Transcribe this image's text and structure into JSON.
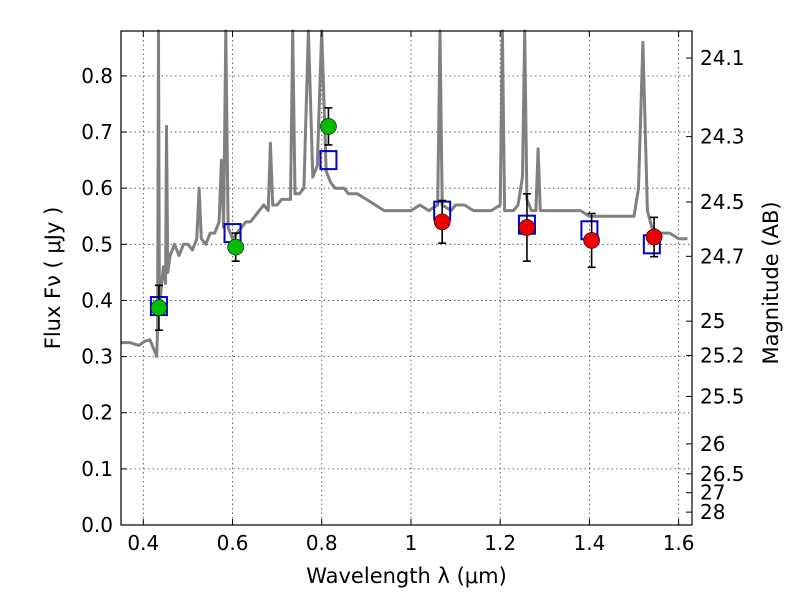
{
  "chart_data": {
    "type": "scatter",
    "xlabel": "Wavelength  λ (μm)",
    "ylabel": "Flux  Fν  ( μJy )",
    "y2label": "Magnitude (AB)",
    "xlim": [
      0.35,
      1.63
    ],
    "ylim": [
      0.0,
      0.88
    ],
    "grid": true,
    "x_ticks": [
      0.4,
      0.6,
      0.8,
      1.0,
      1.2,
      1.4,
      1.6
    ],
    "x_tick_labels": [
      "0.4",
      "0.6",
      "0.8",
      "1",
      "1.2",
      "1.4",
      "1.6"
    ],
    "y_ticks": [
      0.0,
      0.1,
      0.2,
      0.3,
      0.4,
      0.5,
      0.6,
      0.7,
      0.8
    ],
    "y_tick_labels": [
      "0.0",
      "0.1",
      "0.2",
      "0.3",
      "0.4",
      "0.5",
      "0.6",
      "0.7",
      "0.8"
    ],
    "y2_ticks": [
      {
        "label": "24.1",
        "mag": 24.1
      },
      {
        "label": "24.3",
        "mag": 24.3
      },
      {
        "label": "24.5",
        "mag": 24.5
      },
      {
        "label": "24.7",
        "mag": 24.7
      },
      {
        "label": "25",
        "mag": 25.0
      },
      {
        "label": "25.2",
        "mag": 25.2
      },
      {
        "label": "25.5",
        "mag": 25.5
      },
      {
        "label": "26",
        "mag": 26.0
      },
      {
        "label": "26.5",
        "mag": 26.5
      },
      {
        "label": "27",
        "mag": 27.0
      },
      {
        "label": "28",
        "mag": 28.0
      }
    ],
    "series": [
      {
        "kind": "line",
        "color": "#808080",
        "x": [
          0.35,
          0.37,
          0.39,
          0.405,
          0.415,
          0.425,
          0.43,
          0.432,
          0.434,
          0.436,
          0.44,
          0.445,
          0.45,
          0.452,
          0.455,
          0.46,
          0.47,
          0.48,
          0.49,
          0.5,
          0.51,
          0.52,
          0.525,
          0.53,
          0.54,
          0.55,
          0.56,
          0.57,
          0.575,
          0.58,
          0.585,
          0.59,
          0.6,
          0.61,
          0.62,
          0.63,
          0.64,
          0.65,
          0.66,
          0.67,
          0.68,
          0.685,
          0.69,
          0.7,
          0.71,
          0.72,
          0.73,
          0.735,
          0.74,
          0.75,
          0.76,
          0.77,
          0.78,
          0.79,
          0.8,
          0.81,
          0.82,
          0.83,
          0.84,
          0.85,
          0.86,
          0.87,
          0.88,
          0.9,
          0.92,
          0.94,
          0.96,
          0.98,
          1.0,
          1.02,
          1.04,
          1.06,
          1.065,
          1.07,
          1.09,
          1.1,
          1.12,
          1.14,
          1.16,
          1.18,
          1.2,
          1.205,
          1.21,
          1.215,
          1.22,
          1.23,
          1.24,
          1.25,
          1.255,
          1.26,
          1.27,
          1.28,
          1.285,
          1.29,
          1.3,
          1.32,
          1.34,
          1.36,
          1.38,
          1.4,
          1.42,
          1.44,
          1.46,
          1.48,
          1.5,
          1.51,
          1.52,
          1.53,
          1.54,
          1.56,
          1.58,
          1.6,
          1.62
        ],
        "y": [
          0.325,
          0.325,
          0.32,
          0.328,
          0.33,
          0.31,
          0.3,
          0.35,
          0.88,
          0.38,
          0.42,
          0.46,
          0.43,
          0.71,
          0.45,
          0.48,
          0.5,
          0.48,
          0.5,
          0.5,
          0.49,
          0.51,
          0.6,
          0.51,
          0.5,
          0.52,
          0.52,
          0.54,
          0.65,
          0.53,
          0.88,
          0.53,
          0.51,
          0.52,
          0.53,
          0.54,
          0.54,
          0.55,
          0.56,
          0.57,
          0.56,
          0.68,
          0.57,
          0.57,
          0.58,
          0.58,
          0.58,
          0.88,
          0.59,
          0.59,
          0.6,
          0.88,
          0.62,
          0.64,
          0.88,
          0.63,
          0.61,
          0.6,
          0.6,
          0.6,
          0.59,
          0.59,
          0.59,
          0.58,
          0.57,
          0.56,
          0.56,
          0.56,
          0.56,
          0.57,
          0.56,
          0.57,
          0.88,
          0.57,
          0.56,
          0.57,
          0.57,
          0.56,
          0.56,
          0.56,
          0.57,
          0.88,
          0.56,
          0.56,
          0.56,
          0.56,
          0.57,
          0.62,
          0.88,
          0.58,
          0.56,
          0.56,
          0.67,
          0.56,
          0.56,
          0.56,
          0.56,
          0.56,
          0.56,
          0.55,
          0.55,
          0.55,
          0.55,
          0.55,
          0.55,
          0.6,
          0.86,
          0.56,
          0.53,
          0.52,
          0.52,
          0.51,
          0.51
        ]
      },
      {
        "kind": "hollow-square",
        "color": "#0000cc",
        "x": [
          0.435,
          0.6,
          0.815,
          1.07,
          1.26,
          1.4,
          1.54
        ],
        "y": [
          0.39,
          0.52,
          0.65,
          0.56,
          0.535,
          0.525,
          0.5
        ]
      },
      {
        "kind": "circle-with-errorbar",
        "color": "#00bb00",
        "x": [
          0.435,
          0.607,
          0.815
        ],
        "y": [
          0.387,
          0.495,
          0.71
        ],
        "yerr": [
          0.04,
          0.025,
          0.033
        ]
      },
      {
        "kind": "circle-with-errorbar",
        "color": "#ee0000",
        "x": [
          1.07,
          1.26,
          1.405,
          1.545
        ],
        "y": [
          0.54,
          0.53,
          0.507,
          0.513
        ],
        "yerr": [
          0.038,
          0.06,
          0.048,
          0.035
        ]
      }
    ]
  }
}
